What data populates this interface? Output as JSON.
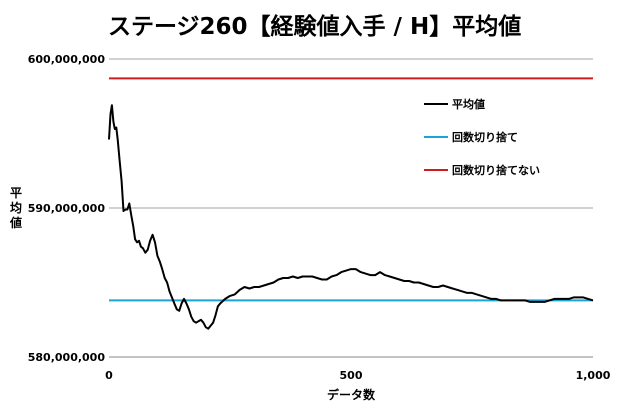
{
  "chart_data": {
    "type": "line",
    "title": "ステージ260【経験値入手 / H】平均値",
    "xlabel": "データ数",
    "ylabel": [
      "平",
      "均",
      "値"
    ],
    "xlim": [
      0,
      1000
    ],
    "ylim": [
      580000000,
      600000000
    ],
    "x_ticks": [
      0,
      500,
      1000
    ],
    "x_tick_labels": [
      "0",
      "500",
      "1,000"
    ],
    "y_ticks": [
      580000000,
      590000000,
      600000000
    ],
    "y_tick_labels": [
      "580,000,000",
      "590,000,000",
      "600,000,000"
    ],
    "grid": "horizontal",
    "legend_position": "right",
    "series": [
      {
        "name": "平均値",
        "color": "#000000",
        "kind": "line",
        "x": [
          0,
          3,
          6,
          9,
          12,
          15,
          18,
          22,
          26,
          30,
          34,
          38,
          42,
          46,
          50,
          54,
          58,
          62,
          66,
          70,
          75,
          80,
          85,
          90,
          95,
          100,
          105,
          110,
          115,
          120,
          125,
          130,
          135,
          140,
          145,
          150,
          155,
          160,
          165,
          170,
          175,
          180,
          185,
          190,
          195,
          200,
          205,
          210,
          215,
          220,
          225,
          230,
          240,
          250,
          260,
          270,
          280,
          290,
          300,
          310,
          320,
          330,
          340,
          350,
          360,
          370,
          380,
          390,
          400,
          410,
          420,
          430,
          440,
          450,
          460,
          470,
          480,
          490,
          500,
          510,
          520,
          530,
          540,
          550,
          560,
          570,
          580,
          590,
          600,
          610,
          620,
          630,
          640,
          650,
          660,
          670,
          680,
          690,
          700,
          710,
          720,
          730,
          740,
          750,
          760,
          770,
          780,
          790,
          800,
          810,
          820,
          830,
          840,
          850,
          860,
          870,
          880,
          890,
          900,
          910,
          920,
          930,
          940,
          950,
          960,
          970,
          980,
          990,
          1000
        ],
        "y": [
          594600000,
          596300000,
          596900000,
          595800000,
          595300000,
          595400000,
          594600000,
          593200000,
          591800000,
          589800000,
          589900000,
          589900000,
          590300000,
          589500000,
          588800000,
          587900000,
          587700000,
          587800000,
          587400000,
          587300000,
          587000000,
          587200000,
          587800000,
          588200000,
          587700000,
          586800000,
          586400000,
          585900000,
          585300000,
          585000000,
          584400000,
          584000000,
          583600000,
          583200000,
          583100000,
          583600000,
          583900000,
          583600000,
          583200000,
          582700000,
          582400000,
          582300000,
          582400000,
          582500000,
          582300000,
          582000000,
          581900000,
          582100000,
          582300000,
          582800000,
          583400000,
          583600000,
          583900000,
          584100000,
          584200000,
          584500000,
          584700000,
          584600000,
          584700000,
          584700000,
          584800000,
          584900000,
          585000000,
          585200000,
          585300000,
          585300000,
          585400000,
          585300000,
          585400000,
          585400000,
          585400000,
          585300000,
          585200000,
          585200000,
          585400000,
          585500000,
          585700000,
          585800000,
          585900000,
          585900000,
          585700000,
          585600000,
          585500000,
          585500000,
          585700000,
          585500000,
          585400000,
          585300000,
          585200000,
          585100000,
          585100000,
          585000000,
          585000000,
          584900000,
          584800000,
          584700000,
          584700000,
          584800000,
          584700000,
          584600000,
          584500000,
          584400000,
          584300000,
          584300000,
          584200000,
          584100000,
          584000000,
          583900000,
          583900000,
          583800000,
          583800000,
          583800000,
          583800000,
          583800000,
          583800000,
          583700000,
          583700000,
          583700000,
          583700000,
          583800000,
          583900000,
          583900000,
          583900000,
          583900000,
          584000000,
          584000000,
          584000000,
          583900000,
          583800000
        ]
      },
      {
        "name": "回数切り捨て",
        "color": "#1aa5d6",
        "kind": "hline",
        "value": 583800000
      },
      {
        "name": "回数切り捨てない",
        "color": "#d01c1c",
        "kind": "hline",
        "value": 598700000
      }
    ]
  }
}
